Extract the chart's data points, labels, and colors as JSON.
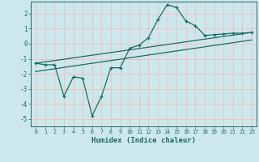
{
  "xlabel": "Humidex (Indice chaleur)",
  "bg_color": "#cce8ec",
  "grid_color": "#f0c0c8",
  "line_color": "#1a6b5e",
  "xlim": [
    -0.5,
    23.5
  ],
  "ylim": [
    -5.5,
    2.8
  ],
  "xticks": [
    0,
    1,
    2,
    3,
    4,
    5,
    6,
    7,
    8,
    9,
    10,
    11,
    12,
    13,
    14,
    15,
    16,
    17,
    18,
    19,
    20,
    21,
    22,
    23
  ],
  "yticks": [
    -5,
    -4,
    -3,
    -2,
    -1,
    0,
    1,
    2
  ],
  "line1_x": [
    0,
    1,
    2,
    3,
    4,
    5,
    6,
    7,
    8,
    9,
    10,
    11,
    12,
    13,
    14,
    15,
    16,
    17,
    18,
    19,
    20,
    21,
    22,
    23
  ],
  "line1_y": [
    -1.3,
    -1.4,
    -1.4,
    -3.5,
    -2.2,
    -2.3,
    -4.8,
    -3.5,
    -1.6,
    -1.6,
    -0.3,
    -0.1,
    0.4,
    1.6,
    2.6,
    2.4,
    1.5,
    1.2,
    0.55,
    0.6,
    0.65,
    0.7,
    0.7,
    0.75
  ],
  "line2_x": [
    0,
    23
  ],
  "line2_y": [
    -1.3,
    0.75
  ],
  "line3_x": [
    0,
    23
  ],
  "line3_y": [
    -1.85,
    0.25
  ]
}
